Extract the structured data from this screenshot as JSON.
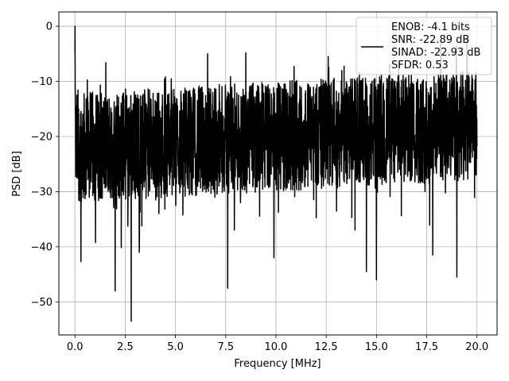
{
  "chart_data": {
    "type": "line",
    "title": "",
    "xlabel": "Frequency [MHz]",
    "ylabel": "PSD [dB]",
    "xlim": [
      -0.8,
      21.0
    ],
    "ylim": [
      -56.0,
      2.6
    ],
    "grid": true,
    "x_ticks": [
      0.0,
      2.5,
      5.0,
      7.5,
      10.0,
      12.5,
      15.0,
      17.5,
      20.0
    ],
    "x_tick_labels": [
      "0.0",
      "2.5",
      "5.0",
      "7.5",
      "10.0",
      "12.5",
      "15.0",
      "17.5",
      "20.0"
    ],
    "y_ticks": [
      0,
      -10,
      -20,
      -30,
      -40,
      -50
    ],
    "y_tick_labels": [
      "0",
      "−10",
      "−20",
      "−30",
      "−40",
      "−50"
    ],
    "legend": {
      "placement": "upper-right",
      "entries": [
        "ENOB: -4.1 bits",
        "SNR: -22.89 dB",
        "SINAD: -22.93 dB",
        "SFDR: 0.53"
      ]
    },
    "series": [
      {
        "color": "#000000",
        "x_range": [
          0.0,
          20.0
        ],
        "noise_floor_range_db": [
          -32,
          -12
        ],
        "peak": {
          "x": 0.0,
          "y": 0.0
        },
        "notable_dips": [
          {
            "x": 0.3,
            "y": -42.7
          },
          {
            "x": 2.0,
            "y": -48.0
          },
          {
            "x": 2.8,
            "y": -53.5
          },
          {
            "x": 3.2,
            "y": -41.0
          },
          {
            "x": 7.6,
            "y": -47.5
          },
          {
            "x": 9.9,
            "y": -42.0
          },
          {
            "x": 14.5,
            "y": -44.5
          },
          {
            "x": 15.0,
            "y": -46.0
          },
          {
            "x": 17.8,
            "y": -41.5
          },
          {
            "x": 19.0,
            "y": -45.5
          }
        ],
        "notable_peaks": [
          {
            "x": 6.6,
            "y": -5.0
          },
          {
            "x": 8.5,
            "y": -4.8
          },
          {
            "x": 12.6,
            "y": -5.5
          },
          {
            "x": 19.5,
            "y": -2.5
          }
        ]
      }
    ]
  }
}
